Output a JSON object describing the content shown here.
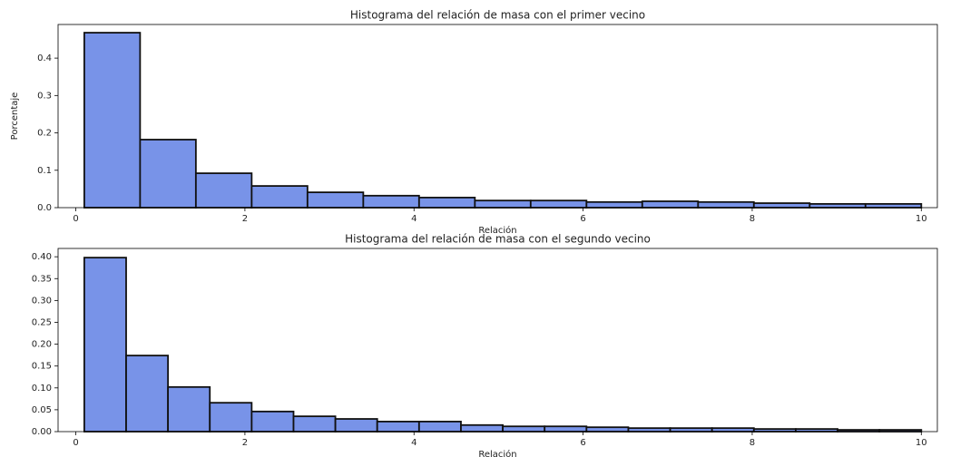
{
  "chart_data": [
    {
      "type": "histogram",
      "title": "Histograma del relación de masa con el primer vecino",
      "xlabel": "Relación",
      "ylabel": "Porcentaje",
      "color": "#7893e8",
      "edgecolor": "#111111",
      "bins": [
        0.1,
        0.76,
        1.42,
        2.08,
        2.74,
        3.4,
        4.06,
        4.72,
        5.38,
        6.04,
        6.7,
        7.36,
        8.02,
        8.68,
        9.34,
        10.0
      ],
      "values": [
        0.468,
        0.182,
        0.092,
        0.058,
        0.041,
        0.032,
        0.027,
        0.019,
        0.019,
        0.015,
        0.017,
        0.015,
        0.012,
        0.01,
        0.01
      ],
      "xlim": [
        -0.21,
        10.19
      ],
      "xticks": [
        0,
        2,
        4,
        6,
        8,
        10
      ],
      "ylim": [
        0,
        0.49
      ],
      "yticks": [
        {
          "value": 0,
          "label": "0.0"
        },
        0.1,
        0.2,
        0.3,
        0.4
      ]
    },
    {
      "type": "histogram",
      "title": "Histograma del relación de masa con el segundo vecino",
      "xlabel": "Relación",
      "color": "#7893e8",
      "edgecolor": "#111111",
      "bins": [
        0.1,
        0.595,
        1.09,
        1.585,
        2.08,
        2.575,
        3.07,
        3.565,
        4.06,
        4.555,
        5.05,
        5.545,
        6.04,
        6.535,
        7.03,
        7.525,
        8.02,
        8.515,
        9.01,
        9.505,
        10.0
      ],
      "values": [
        0.398,
        0.174,
        0.102,
        0.066,
        0.046,
        0.035,
        0.029,
        0.023,
        0.023,
        0.015,
        0.012,
        0.012,
        0.01,
        0.008,
        0.008,
        0.008,
        0.006,
        0.006,
        0.004,
        0.004
      ],
      "xlim": [
        -0.21,
        10.19
      ],
      "xticks": [
        0,
        2,
        4,
        6,
        8,
        10
      ],
      "ylim": [
        0,
        0.419
      ],
      "yticks": [
        {
          "value": 0,
          "label": "0.00"
        },
        0.05,
        {
          "value": 0.1,
          "label": "0.10"
        },
        0.15,
        {
          "value": 0.2,
          "label": "0.20"
        },
        0.25,
        {
          "value": 0.3,
          "label": "0.30"
        },
        0.35,
        {
          "value": 0.4,
          "label": "0.40"
        }
      ]
    }
  ]
}
